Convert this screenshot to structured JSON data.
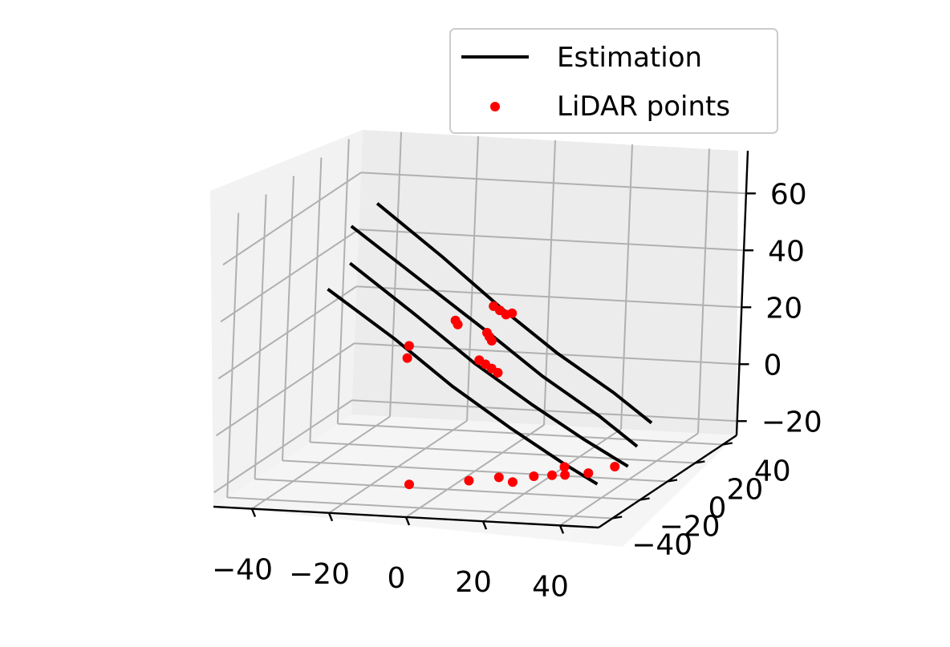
{
  "chart_data": {
    "type": "3d-line-scatter",
    "title": "",
    "legend": {
      "placement": "top-right",
      "entries": [
        {
          "label": "Estimation",
          "kind": "line",
          "color": "#000000"
        },
        {
          "label": "LiDAR points",
          "kind": "marker",
          "color": "#ff0000"
        }
      ]
    },
    "axes": {
      "x": {
        "label": "",
        "range": [
          -50,
          50
        ],
        "ticks": [
          -40,
          -20,
          0,
          20,
          40
        ],
        "tick_labels": [
          "−40",
          "−20",
          "0",
          "20",
          "40"
        ]
      },
      "y": {
        "label": "",
        "range": [
          -50,
          50
        ],
        "ticks": [
          -40,
          -20,
          0,
          20,
          40
        ],
        "tick_labels": [
          "−40",
          "−20",
          "0",
          "20",
          "40"
        ]
      },
      "z": {
        "label": "",
        "range": [
          -25,
          75
        ],
        "ticks": [
          -20,
          0,
          20,
          40,
          60
        ],
        "tick_labels": [
          "−20",
          "0",
          "20",
          "40",
          "60"
        ]
      }
    },
    "grid": true,
    "series": [
      {
        "name": "Estimation",
        "type": "line",
        "color": "#000000",
        "lines": [
          {
            "points": [
              [
                -42,
                40,
                53
              ],
              [
                -20,
                27,
                40
              ],
              [
                0,
                14,
                28
              ],
              [
                20,
                0,
                18
              ],
              [
                40,
                -14,
                10
              ],
              [
                55,
                -28,
                5
              ]
            ]
          },
          {
            "points": [
              [
                -45,
                30,
                48
              ],
              [
                -22,
                17,
                35
              ],
              [
                0,
                4,
                23
              ],
              [
                20,
                -10,
                13
              ],
              [
                40,
                -24,
                5
              ],
              [
                55,
                -38,
                0
              ]
            ]
          },
          {
            "points": [
              [
                -38,
                10,
                42
              ],
              [
                -16,
                -2,
                29
              ],
              [
                4,
                -15,
                18
              ],
              [
                24,
                -28,
                9
              ],
              [
                42,
                -40,
                2
              ],
              [
                57,
                -50,
                -3
              ]
            ]
          },
          {
            "points": [
              [
                -40,
                0,
                36
              ],
              [
                -18,
                -12,
                24
              ],
              [
                2,
                -25,
                13
              ],
              [
                22,
                -38,
                4
              ],
              [
                40,
                -50,
                -3
              ],
              [
                52,
                -58,
                -7
              ]
            ]
          }
        ]
      },
      {
        "name": "LiDAR points",
        "type": "scatter",
        "color": "#ff0000",
        "points": [
          [
            0,
            9,
            30
          ],
          [
            2,
            8,
            29
          ],
          [
            4,
            7,
            28
          ],
          [
            -8,
            4,
            26
          ],
          [
            -7,
            3,
            25
          ],
          [
            1,
            2,
            23
          ],
          [
            2,
            1,
            22
          ],
          [
            3,
            0,
            21
          ],
          [
            -18,
            -1,
            18
          ],
          [
            -18,
            -2,
            14
          ],
          [
            1,
            -3,
            15
          ],
          [
            3,
            -4,
            14
          ],
          [
            5,
            -5,
            13
          ],
          [
            7,
            -6,
            12
          ],
          [
            8,
            0,
            31
          ]
        ],
        "projection_points": [
          [
            -11,
            -17
          ],
          [
            2,
            -10
          ],
          [
            13,
            -9
          ],
          [
            8,
            -5
          ],
          [
            16,
            -2
          ],
          [
            20,
            0
          ],
          [
            23,
            1
          ],
          [
            28,
            4
          ],
          [
            20,
            9
          ],
          [
            32,
            12
          ]
        ]
      }
    ]
  }
}
